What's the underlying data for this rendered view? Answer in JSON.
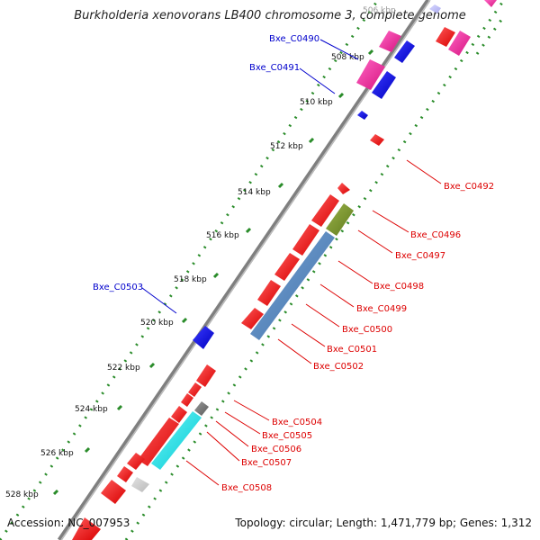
{
  "title": "Burkholderia xenovorans LB400 chromosome 3, complete genome",
  "footer": {
    "accession": "Accession: NC_007953",
    "summary": "Topology: circular; Length: 1,471,779 bp; Genes: 1,312"
  },
  "colors": {
    "backbone": "#7f7f7f",
    "tick_dots": "#2a8c2a",
    "label_forward": "#0000cc",
    "label_reverse": "#dd0000"
  },
  "tick_labels": [
    {
      "kbp": 506,
      "text": "506 kbp"
    },
    {
      "kbp": 508,
      "text": "508 kbp"
    },
    {
      "kbp": 510,
      "text": "510 kbp"
    },
    {
      "kbp": 512,
      "text": "512 kbp"
    },
    {
      "kbp": 514,
      "text": "514 kbp"
    },
    {
      "kbp": 516,
      "text": "516 kbp"
    },
    {
      "kbp": 518,
      "text": "518 kbp"
    },
    {
      "kbp": 520,
      "text": "520 kbp"
    },
    {
      "kbp": 522,
      "text": "522 kbp"
    },
    {
      "kbp": 524,
      "text": "524 kbp"
    },
    {
      "kbp": 526,
      "text": "526 kbp"
    },
    {
      "kbp": 528,
      "text": "528 kbp"
    }
  ],
  "gene_labels": [
    {
      "text": "Bxe_C0490",
      "strand": "forward"
    },
    {
      "text": "Bxe_C0491",
      "strand": "forward"
    },
    {
      "text": "Bxe_C0503",
      "strand": "forward"
    },
    {
      "text": "Bxe_C0492",
      "strand": "reverse"
    },
    {
      "text": "Bxe_C0496",
      "strand": "reverse"
    },
    {
      "text": "Bxe_C0497",
      "strand": "reverse"
    },
    {
      "text": "Bxe_C0498",
      "strand": "reverse"
    },
    {
      "text": "Bxe_C0499",
      "strand": "reverse"
    },
    {
      "text": "Bxe_C0500",
      "strand": "reverse"
    },
    {
      "text": "Bxe_C0501",
      "strand": "reverse"
    },
    {
      "text": "Bxe_C0502",
      "strand": "reverse"
    },
    {
      "text": "Bxe_C0504",
      "strand": "reverse"
    },
    {
      "text": "Bxe_C0505",
      "strand": "reverse"
    },
    {
      "text": "Bxe_C0506",
      "strand": "reverse"
    },
    {
      "text": "Bxe_C0507",
      "strand": "reverse"
    },
    {
      "text": "Bxe_C0508",
      "strand": "reverse"
    }
  ]
}
